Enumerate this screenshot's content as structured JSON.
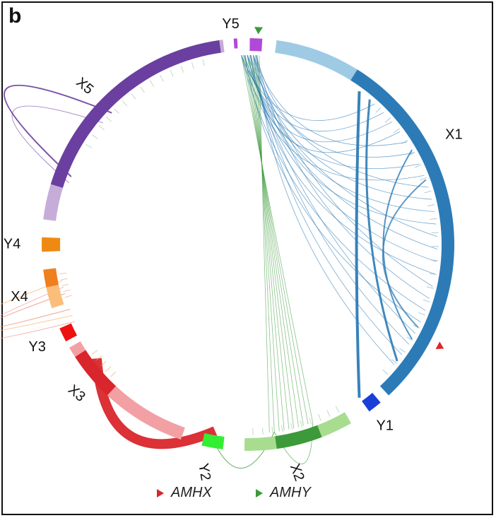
{
  "panel_label": "b",
  "colors": {
    "x1": "#2c7bb6",
    "x1_light": "#9fcae4",
    "y1": "#1a3fd8",
    "x2": "#3c9a3a",
    "x2_light": "#a8dd90",
    "y2": "#33ee33",
    "x3": "#d9262c",
    "x3_light": "#f2a0a4",
    "y3": "#ee1111",
    "x4": "#f07f1e",
    "x4_light": "#fbbe7a",
    "y4": "#ee8a12",
    "x5": "#6b3fa0",
    "x5_light": "#c6acd8",
    "y5": "#b04ad6",
    "amhx_marker": "#d9262c",
    "amhy_marker": "#3c9a3a"
  },
  "chromosome_labels": {
    "x1": "X1",
    "y1": "Y1",
    "x2": "X2",
    "y2": "Y2",
    "x3": "X3",
    "y3": "Y3",
    "x4": "X4",
    "y4": "Y4",
    "x5": "X5",
    "y5": "Y5"
  },
  "legend": {
    "amhx": "AMHX",
    "amhy": "AMHY"
  }
}
